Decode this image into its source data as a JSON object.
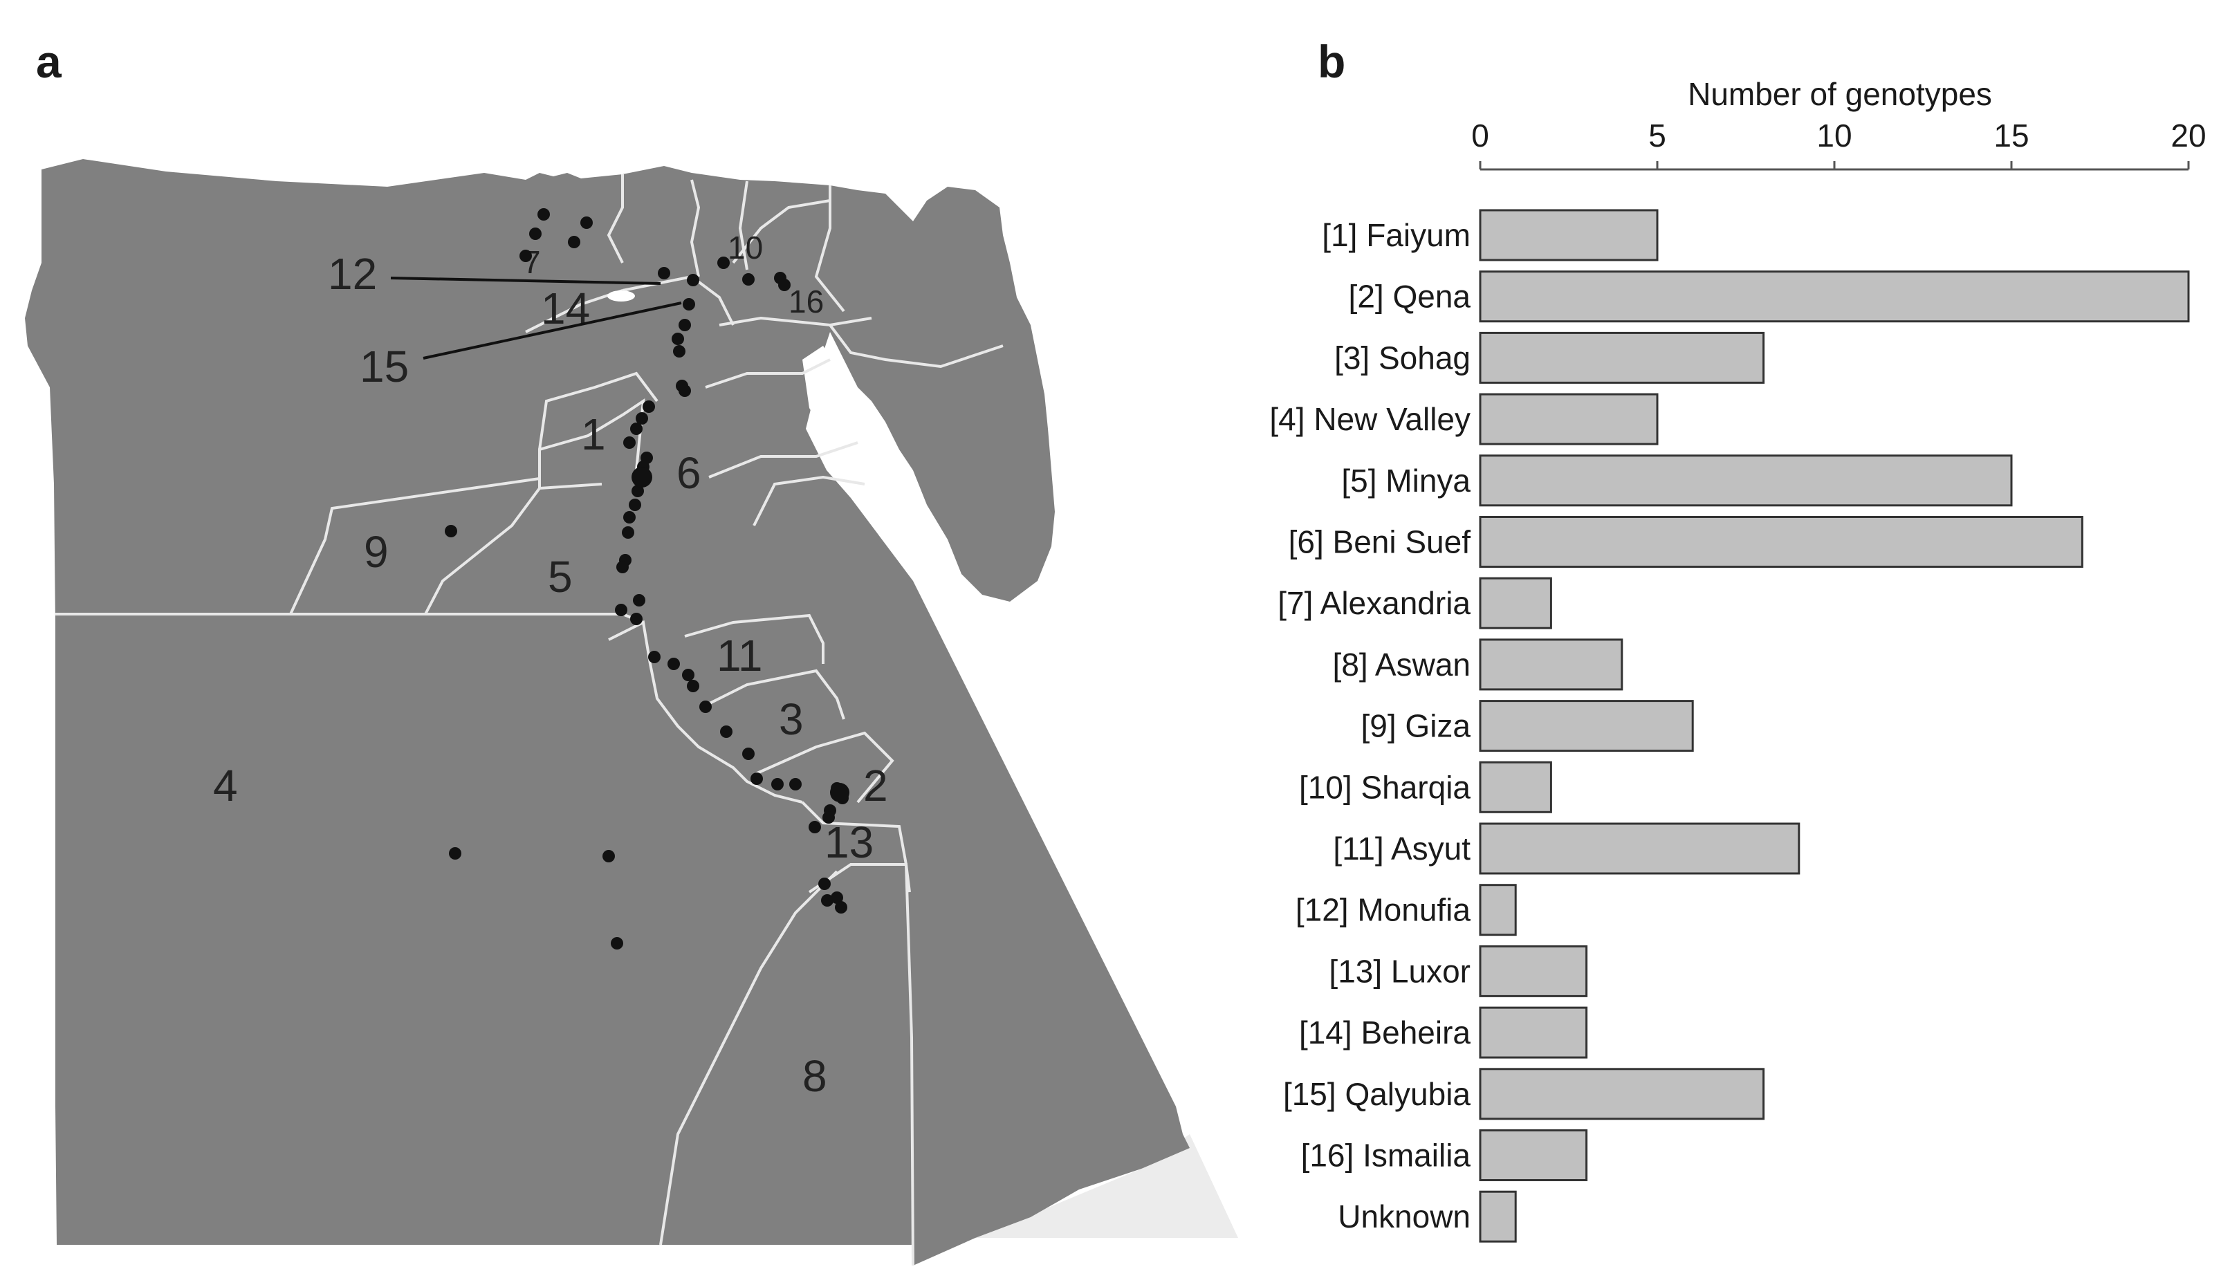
{
  "panels": {
    "a": "a",
    "b": "b"
  },
  "map": {
    "land_color": "#808080",
    "border_color": "#e8e8e8",
    "sea_color": "#ffffff",
    "region_labels": [
      "1",
      "2",
      "3",
      "4",
      "5",
      "6",
      "7",
      "8",
      "9",
      "10",
      "11",
      "12",
      "13",
      "14",
      "15",
      "16"
    ],
    "sample_point_color": "#111111"
  },
  "chart_data": {
    "type": "bar",
    "orientation": "horizontal",
    "title": "",
    "xlabel": "Number of genotypes",
    "ylabel": "",
    "xlim": [
      0,
      20
    ],
    "xticks": [
      0,
      5,
      10,
      15,
      20
    ],
    "axis_position": "top",
    "bar_color": "#c0c0c0",
    "categories": [
      "[1] Faiyum",
      "[2] Qena",
      "[3] Sohag",
      "[4] New Valley",
      "[5] Minya",
      "[6] Beni Suef",
      "[7] Alexandria",
      "[8] Aswan",
      "[9] Giza",
      "[10] Sharqia",
      "[11] Asyut",
      "[12] Monufia",
      "[13] Luxor",
      "[14] Beheira",
      "[15] Qalyubia",
      "[16] Ismailia",
      "Unknown"
    ],
    "values": [
      5,
      20,
      8,
      5,
      15,
      17,
      2,
      4,
      6,
      2,
      9,
      1,
      3,
      3,
      8,
      3,
      1
    ]
  }
}
